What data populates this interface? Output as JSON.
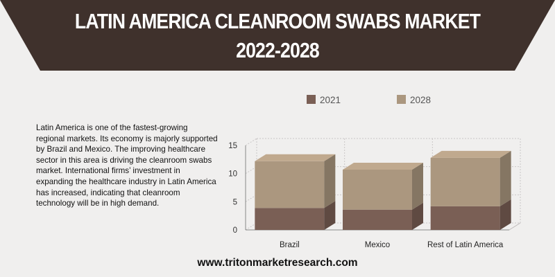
{
  "header": {
    "title_line1": "LATIN AMERICA CLEANROOM SWABS MARKET",
    "title_line2": "2022-2028"
  },
  "description": "Latin America is one of the fastest-growing regional markets. Its economy is majorly supported by Brazil and Mexico. The improving healthcare sector in this area is driving the cleanroom swabs market. International firms’ investment in expanding the healthcare industry in Latin America has increased, indicating that cleanroom technology will be in high demand.",
  "footer": {
    "website": "www.tritonmarketresearch.com"
  },
  "colors": {
    "banner": "#3f312c",
    "series_2021": "#7a5f55",
    "series_2028": "#ab977f"
  },
  "chart_data": {
    "type": "bar",
    "stacked": true,
    "style": "3d",
    "categories": [
      "Brazil",
      "Mexico",
      "Rest of Latin America"
    ],
    "series": [
      {
        "name": "2021",
        "values": [
          3.9,
          3.6,
          4.2
        ]
      },
      {
        "name": "2028",
        "values": [
          8.3,
          7.1,
          8.6
        ]
      }
    ],
    "ylim": [
      0,
      15
    ],
    "yticks": [
      0,
      5,
      10,
      15
    ],
    "grid": true,
    "legend": "top",
    "title": "",
    "xlabel": "",
    "ylabel": ""
  }
}
